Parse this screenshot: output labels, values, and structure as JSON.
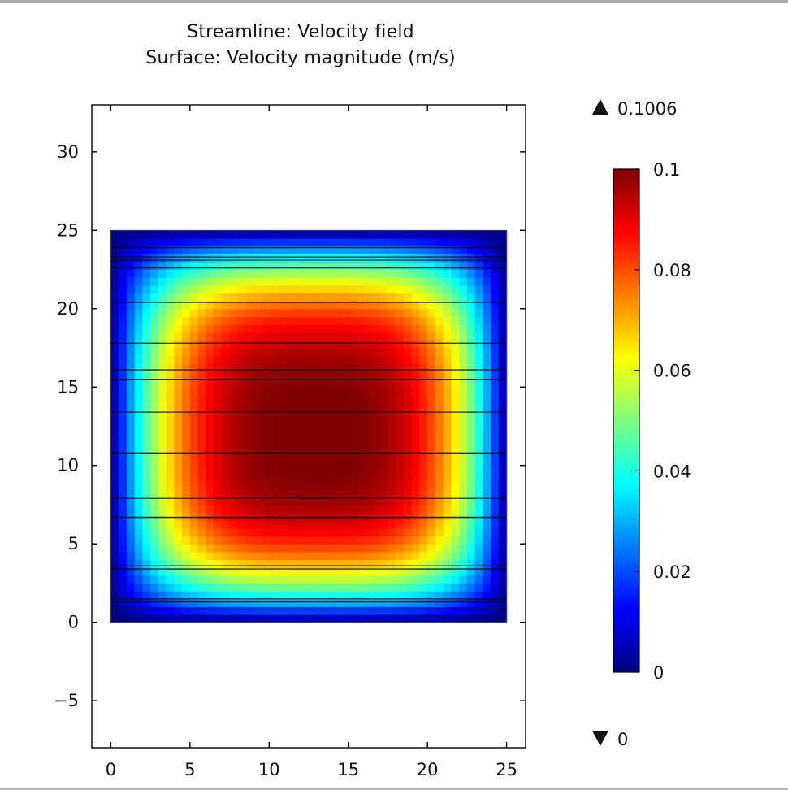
{
  "chart_data": {
    "type": "heatmap",
    "title": "Streamline: Velocity field",
    "subtitle": "Surface: Velocity magnitude (m/s)",
    "xlabel": "",
    "ylabel": "",
    "xlim": [
      -1.2,
      26.2
    ],
    "ylim": [
      -8,
      33
    ],
    "x_ticks": [
      "0",
      "5",
      "10",
      "15",
      "20",
      "25"
    ],
    "y_ticks": [
      "−5",
      "0",
      "5",
      "10",
      "15",
      "20",
      "25",
      "30"
    ],
    "x_tick_values": [
      0,
      5,
      10,
      15,
      20,
      25
    ],
    "y_tick_values": [
      -5,
      0,
      5,
      10,
      15,
      20,
      25,
      30
    ],
    "domain": {
      "x": [
        0,
        25
      ],
      "y": [
        0,
        25
      ]
    },
    "surface_peak": {
      "x": 13,
      "y": 12,
      "value": 0.1006
    },
    "streamlines_y": [
      0.8,
      1.3,
      1.5,
      3.4,
      3.6,
      6.6,
      6.7,
      7.9,
      10.8,
      13.4,
      15.5,
      16.1,
      17.8,
      20.4,
      22.6,
      23.1,
      23.3,
      23.9
    ],
    "colorbar": {
      "max_label": "0.1006",
      "min_label": "0",
      "range": [
        0,
        0.1
      ],
      "ticks": [
        "0.1",
        "0.08",
        "0.06",
        "0.04",
        "0.02",
        "0"
      ],
      "tick_values": [
        0.1,
        0.08,
        0.06,
        0.04,
        0.02,
        0
      ],
      "colormap": [
        "#00007f",
        "#0000ff",
        "#007fff",
        "#00ffff",
        "#7fff7f",
        "#ffff00",
        "#ff7f00",
        "#ff0000",
        "#7f0000"
      ]
    },
    "legend_placement": "right",
    "grid": false
  }
}
